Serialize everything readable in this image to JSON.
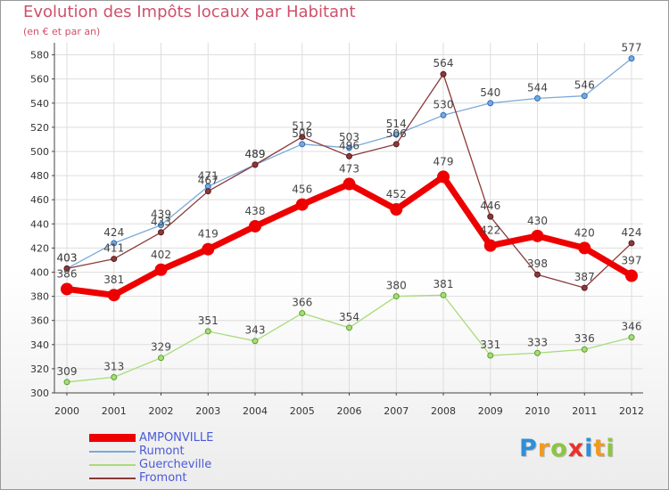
{
  "header": {
    "title": "Evolution des Impôts locaux par Habitant",
    "subtitle": "(en € et par an)"
  },
  "logo": {
    "text": [
      "P",
      "r",
      "o",
      "x",
      "i",
      "t",
      "i"
    ],
    "colors": [
      "#2e8fd8",
      "#f09a1f",
      "#8cc63f",
      "#e8322e",
      "#2e8fd8",
      "#f09a1f",
      "#8cc63f"
    ]
  },
  "colors": {
    "grid": "#dddddd",
    "axis": "#444444",
    "tick_label": "#333333",
    "data_label": "#444444"
  },
  "chart_data": {
    "type": "line",
    "x": [
      2000,
      2001,
      2002,
      2003,
      2004,
      2005,
      2006,
      2007,
      2008,
      2009,
      2010,
      2011,
      2012
    ],
    "ylim": [
      300,
      590
    ],
    "yticks": [
      300,
      320,
      340,
      360,
      380,
      400,
      420,
      440,
      460,
      480,
      500,
      520,
      540,
      560,
      580
    ],
    "grid": true,
    "legend_position": "bottom-left",
    "series": [
      {
        "name": "AMPONVILLE",
        "color": "#ee0000",
        "width": 7,
        "marker": 7,
        "outline": "#ee0000",
        "values": [
          386,
          381,
          402,
          419,
          438,
          456,
          473,
          452,
          479,
          422,
          430,
          420,
          397
        ]
      },
      {
        "name": "Rumont",
        "color": "#7aa8d8",
        "width": 1.3,
        "marker": 3,
        "outline": "#2a6fc0",
        "values": [
          403,
          424,
          439,
          471,
          489,
          506,
          503,
          514,
          530,
          540,
          544,
          546,
          577
        ]
      },
      {
        "name": "Guercheville",
        "color": "#a8dc78",
        "width": 1.3,
        "marker": 3,
        "outline": "#5aa02a",
        "values": [
          309,
          313,
          329,
          351,
          343,
          366,
          354,
          380,
          381,
          331,
          333,
          336,
          346
        ]
      },
      {
        "name": "Fromont",
        "color": "#8a3a3a",
        "width": 1.3,
        "marker": 3,
        "outline": "#5a1a1a",
        "values": [
          403,
          411,
          433,
          467,
          489,
          512,
          496,
          506,
          564,
          446,
          398,
          387,
          424
        ]
      }
    ]
  }
}
